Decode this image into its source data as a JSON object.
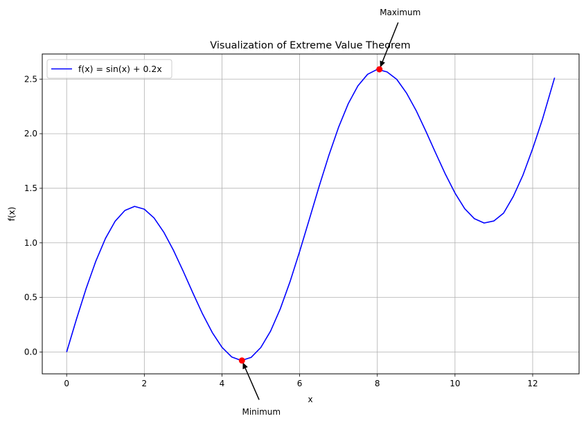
{
  "chart_data": {
    "type": "line",
    "title": "Visualization of Extreme Value Theorem",
    "xlabel": "x",
    "ylabel": "f(x)",
    "xlim": [
      -0.628,
      13.195
    ],
    "ylim": [
      -0.2,
      2.73
    ],
    "xticks": [
      0,
      2,
      4,
      6,
      8,
      10,
      12
    ],
    "yticks": [
      0.0,
      0.5,
      1.0,
      1.5,
      2.0,
      2.5
    ],
    "xtick_labels": [
      "0",
      "2",
      "4",
      "6",
      "8",
      "10",
      "12"
    ],
    "ytick_labels": [
      "0.0",
      "0.5",
      "1.0",
      "1.5",
      "2.0",
      "2.5"
    ],
    "grid": true,
    "legend_position": "top-left",
    "series": [
      {
        "name": "f(x) = sin(x) + 0.2x",
        "color": "#0000ff",
        "x": [
          0.0,
          0.25,
          0.5,
          0.75,
          1.0,
          1.25,
          1.5,
          1.75,
          2.0,
          2.25,
          2.5,
          2.75,
          3.0,
          3.25,
          3.5,
          3.75,
          4.0,
          4.25,
          4.5,
          4.75,
          5.0,
          5.25,
          5.5,
          5.75,
          6.0,
          6.25,
          6.5,
          6.75,
          7.0,
          7.25,
          7.5,
          7.75,
          8.0,
          8.25,
          8.5,
          8.75,
          9.0,
          9.25,
          9.5,
          9.75,
          10.0,
          10.25,
          10.5,
          10.75,
          11.0,
          11.25,
          11.5,
          11.75,
          12.0,
          12.25,
          12.566
        ],
        "y": [
          0.0,
          0.297,
          0.579,
          0.832,
          1.041,
          1.199,
          1.297,
          1.334,
          1.309,
          1.228,
          1.098,
          0.932,
          0.741,
          0.542,
          0.349,
          0.178,
          0.043,
          -0.045,
          -0.078,
          -0.05,
          0.041,
          0.191,
          0.395,
          0.642,
          0.921,
          1.217,
          1.515,
          1.8,
          2.057,
          2.274,
          2.438,
          2.544,
          2.589,
          2.566,
          2.498,
          2.373,
          2.212,
          2.023,
          1.825,
          1.63,
          1.456,
          1.313,
          1.221,
          1.182,
          1.2,
          1.272,
          1.425,
          1.621,
          1.863,
          2.129,
          2.513
        ]
      }
    ],
    "points": [
      {
        "label": "Minimum",
        "x": 4.514,
        "y": -0.078,
        "color": "#ff0000"
      },
      {
        "label": "Maximum",
        "x": 8.054,
        "y": 2.59,
        "color": "#ff0000"
      }
    ]
  }
}
